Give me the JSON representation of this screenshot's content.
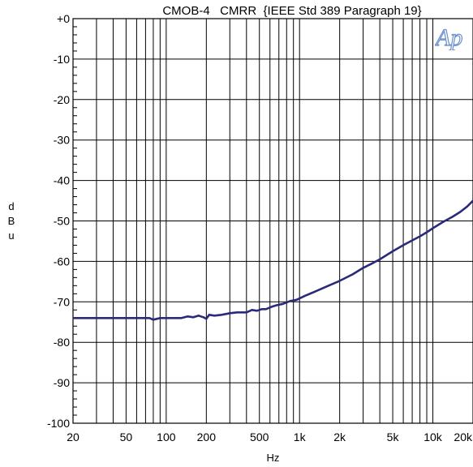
{
  "chart_data": {
    "type": "line",
    "title": "CMOB-4   CMRR  {IEEE Std 389 Paragraph 19}",
    "xlabel": "Hz",
    "ylabel": "dBu",
    "x_scale": "log",
    "xlim": [
      20,
      20000
    ],
    "ylim": [
      -100,
      0
    ],
    "grid": true,
    "x_ticks": [
      20,
      50,
      100,
      200,
      500,
      1000,
      2000,
      5000,
      10000,
      20000
    ],
    "x_tick_labels": [
      "20",
      "50",
      "100",
      "200",
      "500",
      "1k",
      "2k",
      "5k",
      "10k",
      "20k"
    ],
    "y_ticks": [
      0,
      -10,
      -20,
      -30,
      -40,
      -50,
      -60,
      -70,
      -80,
      -90,
      -100
    ],
    "y_tick_labels": [
      "+0",
      "-10",
      "-20",
      "-30",
      "-40",
      "-50",
      "-60",
      "-70",
      "-80",
      "-90",
      "-100"
    ],
    "series": [
      {
        "color": "#2a2a7a",
        "x": [
          20,
          30,
          40,
          55,
          65,
          75,
          80,
          90,
          110,
          130,
          145,
          160,
          175,
          190,
          200,
          210,
          230,
          260,
          300,
          340,
          400,
          440,
          480,
          520,
          560,
          620,
          680,
          750,
          850,
          950,
          1100,
          1300,
          1600,
          2000,
          2500,
          3000,
          3500,
          4000,
          5000,
          6000,
          7000,
          8000,
          9000,
          10000,
          12000,
          14000,
          16000,
          18000,
          20000
        ],
        "y": [
          -74,
          -74,
          -74,
          -74,
          -74,
          -74,
          -74.4,
          -74,
          -74,
          -74,
          -73.6,
          -73.8,
          -73.4,
          -73.8,
          -74.2,
          -73.2,
          -73.4,
          -73.2,
          -72.8,
          -72.6,
          -72.6,
          -72,
          -72.2,
          -71.8,
          -71.8,
          -71.2,
          -70.8,
          -70.5,
          -69.8,
          -69.5,
          -68.5,
          -67.5,
          -66.2,
          -64.8,
          -63.2,
          -61.6,
          -60.5,
          -59.5,
          -57.5,
          -56,
          -54.8,
          -53.8,
          -52.8,
          -51.8,
          -50.2,
          -49,
          -47.8,
          -46.5,
          -45
        ]
      }
    ]
  },
  "logo": {
    "text": "Ap"
  }
}
